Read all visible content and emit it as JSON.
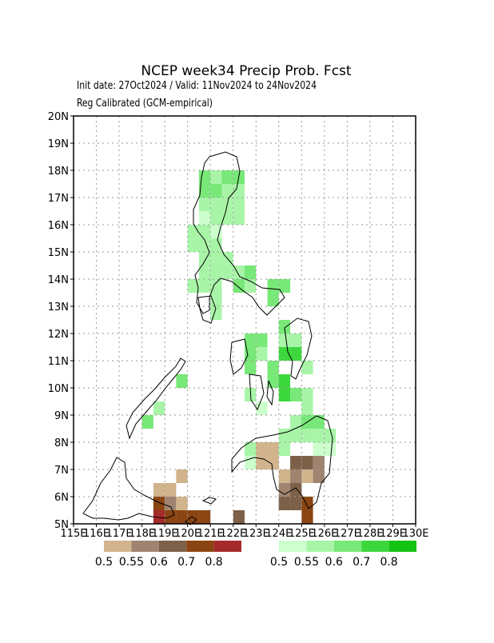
{
  "map": {
    "title": "NCEP week34 Precip Prob. Fcst",
    "subtitle": "Init date: 27Oct2024 / Valid: 11Nov2024 to 24Nov2024",
    "method": "Reg Calibrated (GCM-empirical)",
    "xlim": [
      115,
      130
    ],
    "ylim": [
      5,
      20
    ],
    "xticks": [
      {
        "value": 115,
        "label": "115E"
      },
      {
        "value": 116,
        "label": "116E"
      },
      {
        "value": 117,
        "label": "117E"
      },
      {
        "value": 118,
        "label": "118E"
      },
      {
        "value": 119,
        "label": "119E"
      },
      {
        "value": 120,
        "label": "120E"
      },
      {
        "value": 121,
        "label": "121E"
      },
      {
        "value": 122,
        "label": "122E"
      },
      {
        "value": 123,
        "label": "123E"
      },
      {
        "value": 124,
        "label": "124E"
      },
      {
        "value": 125,
        "label": "125E"
      },
      {
        "value": 126,
        "label": "126E"
      },
      {
        "value": 127,
        "label": "127E"
      },
      {
        "value": 128,
        "label": "128E"
      },
      {
        "value": 129,
        "label": "129E"
      },
      {
        "value": 130,
        "label": "130E"
      }
    ],
    "yticks": [
      {
        "value": 5,
        "label": "5N"
      },
      {
        "value": 6,
        "label": "6N"
      },
      {
        "value": 7,
        "label": "7N"
      },
      {
        "value": 8,
        "label": "8N"
      },
      {
        "value": 9,
        "label": "9N"
      },
      {
        "value": 10,
        "label": "10N"
      },
      {
        "value": 11,
        "label": "11N"
      },
      {
        "value": 12,
        "label": "12N"
      },
      {
        "value": 13,
        "label": "13N"
      },
      {
        "value": 14,
        "label": "14N"
      },
      {
        "value": 15,
        "label": "15N"
      },
      {
        "value": 16,
        "label": "16N"
      },
      {
        "value": 17,
        "label": "17N"
      },
      {
        "value": 18,
        "label": "18N"
      },
      {
        "value": 19,
        "label": "19N"
      },
      {
        "value": 20,
        "label": "20N"
      }
    ],
    "grid": true,
    "cell_size": 0.5,
    "dry_legend": {
      "levels": [
        0.5,
        0.55,
        0.6,
        0.7,
        0.8
      ],
      "colors": [
        "#d2b48c",
        "#a08470",
        "#7d6048",
        "#8b4513",
        "#a52a2a"
      ]
    },
    "wet_legend": {
      "levels": [
        0.5,
        0.55,
        0.6,
        0.7,
        0.8
      ],
      "colors": [
        "#ccffcc",
        "#a8f5a8",
        "#78e878",
        "#3cd73c",
        "#14c314"
      ]
    },
    "wet_cells": [
      [
        120.5,
        17.5,
        0.6
      ],
      [
        121,
        17.5,
        0.55
      ],
      [
        121.5,
        17.5,
        0.6
      ],
      [
        122,
        17.5,
        0.6
      ],
      [
        120.5,
        17,
        0.6
      ],
      [
        121,
        17,
        0.6
      ],
      [
        121.5,
        17,
        0.55
      ],
      [
        122,
        17,
        0.55
      ],
      [
        120.5,
        16.5,
        0.55
      ],
      [
        121,
        16.5,
        0.55
      ],
      [
        121.5,
        16.5,
        0.55
      ],
      [
        122,
        16.5,
        0.55
      ],
      [
        120.5,
        16,
        0.5
      ],
      [
        121,
        16,
        0.55
      ],
      [
        121.5,
        16,
        0.55
      ],
      [
        122,
        16,
        0.55
      ],
      [
        120,
        15.5,
        0.55
      ],
      [
        120.5,
        15.5,
        0.55
      ],
      [
        121,
        15.5,
        0.5
      ],
      [
        120,
        15,
        0.55
      ],
      [
        120.5,
        15,
        0.55
      ],
      [
        121,
        15,
        0.55
      ],
      [
        120.5,
        14.5,
        0.55
      ],
      [
        121,
        14.5,
        0.55
      ],
      [
        121.5,
        14.5,
        0.55
      ],
      [
        120.5,
        14,
        0.55
      ],
      [
        121,
        14,
        0.55
      ],
      [
        121.5,
        14,
        0.55
      ],
      [
        122,
        14,
        0.55
      ],
      [
        122.5,
        14,
        0.6
      ],
      [
        120,
        13.5,
        0.55
      ],
      [
        120.5,
        13.5,
        0.55
      ],
      [
        121,
        13.5,
        0.55
      ],
      [
        122,
        13.5,
        0.6
      ],
      [
        122.5,
        13.5,
        0.55
      ],
      [
        123.5,
        13.5,
        0.6
      ],
      [
        124,
        13.5,
        0.6
      ],
      [
        121,
        13,
        0.55
      ],
      [
        123.5,
        13,
        0.6
      ],
      [
        121,
        12.5,
        0.55
      ],
      [
        124,
        12,
        0.6
      ],
      [
        122.5,
        11.5,
        0.6
      ],
      [
        123,
        11.5,
        0.6
      ],
      [
        124,
        11.5,
        0.55
      ],
      [
        124.5,
        11.5,
        0.55
      ],
      [
        122.5,
        11,
        0.6
      ],
      [
        123,
        11,
        0.55
      ],
      [
        124,
        11,
        0.7
      ],
      [
        124.5,
        11,
        0.7
      ],
      [
        122.5,
        10.5,
        0.6
      ],
      [
        123.5,
        10.5,
        0.6
      ],
      [
        125,
        10.5,
        0.55
      ],
      [
        119.5,
        10,
        0.6
      ],
      [
        123.5,
        10,
        0.6
      ],
      [
        124,
        10,
        0.7
      ],
      [
        122.5,
        9.5,
        0.55
      ],
      [
        124,
        9.5,
        0.7
      ],
      [
        124.5,
        9.5,
        0.6
      ],
      [
        125,
        9.5,
        0.55
      ],
      [
        118.5,
        9,
        0.55
      ],
      [
        123,
        9,
        0.5
      ],
      [
        125,
        9,
        0.55
      ],
      [
        118,
        8.5,
        0.6
      ],
      [
        124.5,
        8.5,
        0.55
      ],
      [
        125,
        8.5,
        0.6
      ],
      [
        125.5,
        8.5,
        0.6
      ],
      [
        124,
        8,
        0.55
      ],
      [
        124.5,
        8,
        0.55
      ],
      [
        125,
        8,
        0.55
      ],
      [
        125.5,
        8,
        0.55
      ],
      [
        126,
        8,
        0.55
      ],
      [
        122.5,
        7.5,
        0.55
      ],
      [
        124,
        7.5,
        0.55
      ],
      [
        125.5,
        7.5,
        0.5
      ],
      [
        126,
        7.5,
        0.5
      ],
      [
        122.5,
        7,
        0.5
      ]
    ],
    "dry_cells": [
      [
        123,
        7.5,
        0.5
      ],
      [
        123.5,
        7.5,
        0.5
      ],
      [
        123,
        7,
        0.5
      ],
      [
        123.5,
        7,
        0.5
      ],
      [
        124.5,
        7,
        0.6
      ],
      [
        125,
        7,
        0.6
      ],
      [
        125.5,
        7,
        0.55
      ],
      [
        119.5,
        6.5,
        0.5
      ],
      [
        124,
        6.5,
        0.5
      ],
      [
        124.5,
        6.5,
        0.55
      ],
      [
        125,
        6.5,
        0.5
      ],
      [
        125.5,
        6.5,
        0.55
      ],
      [
        118.5,
        6,
        0.5
      ],
      [
        119,
        6,
        0.5
      ],
      [
        124,
        6,
        0.55
      ],
      [
        124.5,
        6,
        0.6
      ],
      [
        118.5,
        5.5,
        0.7
      ],
      [
        119,
        5.5,
        0.55
      ],
      [
        119.5,
        5.5,
        0.5
      ],
      [
        124,
        5.5,
        0.6
      ],
      [
        124.5,
        5.5,
        0.6
      ],
      [
        125,
        5.5,
        0.7
      ],
      [
        118.5,
        5,
        0.8
      ],
      [
        119,
        5,
        0.7
      ],
      [
        119.5,
        5,
        0.7
      ],
      [
        120,
        5,
        0.7
      ],
      [
        120.5,
        5,
        0.7
      ],
      [
        122,
        5,
        0.6
      ],
      [
        125,
        5,
        0.7
      ]
    ]
  }
}
